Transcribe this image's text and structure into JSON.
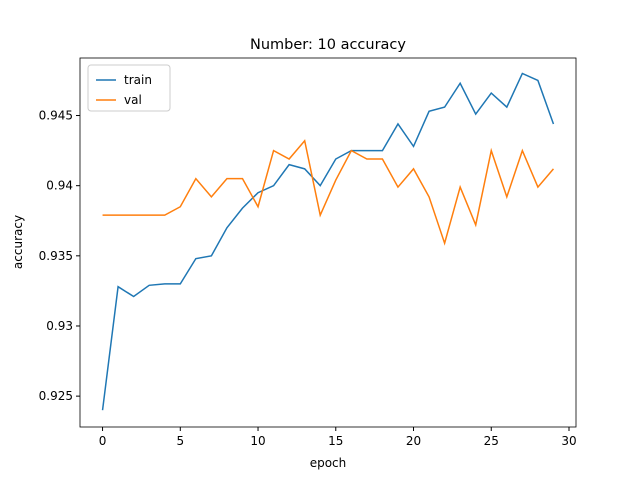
{
  "chart_data": {
    "type": "line",
    "title": "Number: 10 accuracy",
    "xlabel": "epoch",
    "ylabel": "accuracy",
    "x": [
      0,
      1,
      2,
      3,
      4,
      5,
      6,
      7,
      8,
      9,
      10,
      11,
      12,
      13,
      14,
      15,
      16,
      17,
      18,
      19,
      20,
      21,
      22,
      23,
      24,
      25,
      26,
      27,
      28,
      29
    ],
    "series": [
      {
        "name": "train",
        "color": "#1f77b4",
        "values": [
          0.924,
          0.9328,
          0.9321,
          0.9329,
          0.933,
          0.933,
          0.9348,
          0.935,
          0.937,
          0.9384,
          0.9395,
          0.94,
          0.9415,
          0.9412,
          0.94,
          0.9419,
          0.9425,
          0.9425,
          0.9425,
          0.9444,
          0.9428,
          0.9453,
          0.9456,
          0.9473,
          0.9451,
          0.9466,
          0.9456,
          0.948,
          0.9475,
          0.9444
        ]
      },
      {
        "name": "val",
        "color": "#ff7f0e",
        "values": [
          0.9379,
          0.9379,
          0.9379,
          0.9379,
          0.9379,
          0.9385,
          0.9405,
          0.9392,
          0.9405,
          0.9405,
          0.9385,
          0.9425,
          0.9419,
          0.9432,
          0.9379,
          0.9404,
          0.9425,
          0.9419,
          0.9419,
          0.9399,
          0.9412,
          0.9392,
          0.9359,
          0.9399,
          0.9372,
          0.9425,
          0.9392,
          0.9425,
          0.9399,
          0.9412
        ]
      }
    ],
    "xlim": [
      -1.45,
      30.45
    ],
    "xticks": [
      0,
      5,
      10,
      15,
      20,
      25,
      30
    ],
    "ylim": [
      0.9228,
      0.9491
    ],
    "yticks": [
      0.925,
      0.93,
      0.935,
      0.94,
      0.945
    ],
    "legend": "upper left"
  }
}
